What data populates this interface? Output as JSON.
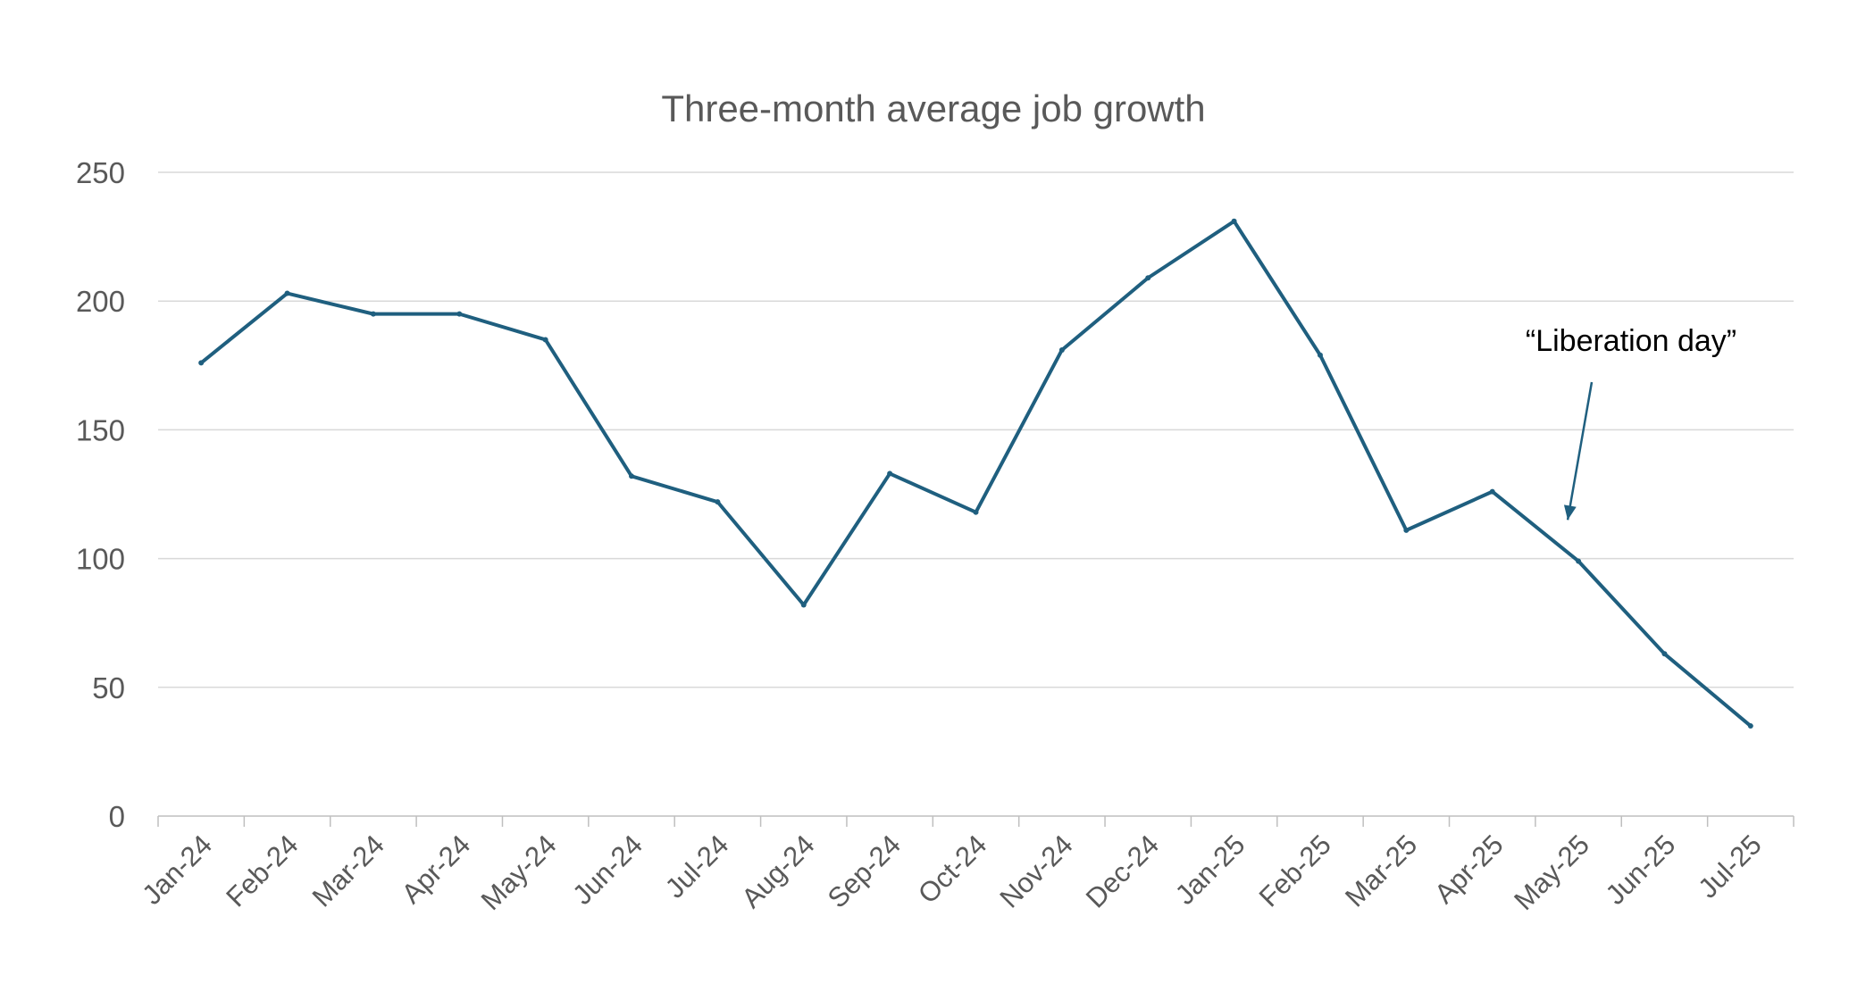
{
  "chart_data": {
    "type": "line",
    "title": "Three-month average job growth",
    "xlabel": "",
    "ylabel": "",
    "ylim": [
      0,
      250
    ],
    "yticks": [
      0,
      50,
      100,
      150,
      200,
      250
    ],
    "grid": true,
    "legend": "none",
    "categories": [
      "Jan-24",
      "Feb-24",
      "Mar-24",
      "Apr-24",
      "May-24",
      "Jun-24",
      "Jul-24",
      "Aug-24",
      "Sep-24",
      "Oct-24",
      "Nov-24",
      "Dec-24",
      "Jan-25",
      "Feb-25",
      "Mar-25",
      "Apr-25",
      "May-25",
      "Jun-25",
      "Jul-25"
    ],
    "series": [
      {
        "color": "#1f5f7f",
        "values": [
          176,
          203,
          195,
          195,
          185,
          132,
          122,
          82,
          133,
          118,
          181,
          209,
          231,
          179,
          111,
          126,
          99,
          63,
          35
        ]
      }
    ],
    "annotations": [
      {
        "text": "“Liberation day”",
        "target_category": "May-25",
        "target_value": 115
      }
    ]
  }
}
